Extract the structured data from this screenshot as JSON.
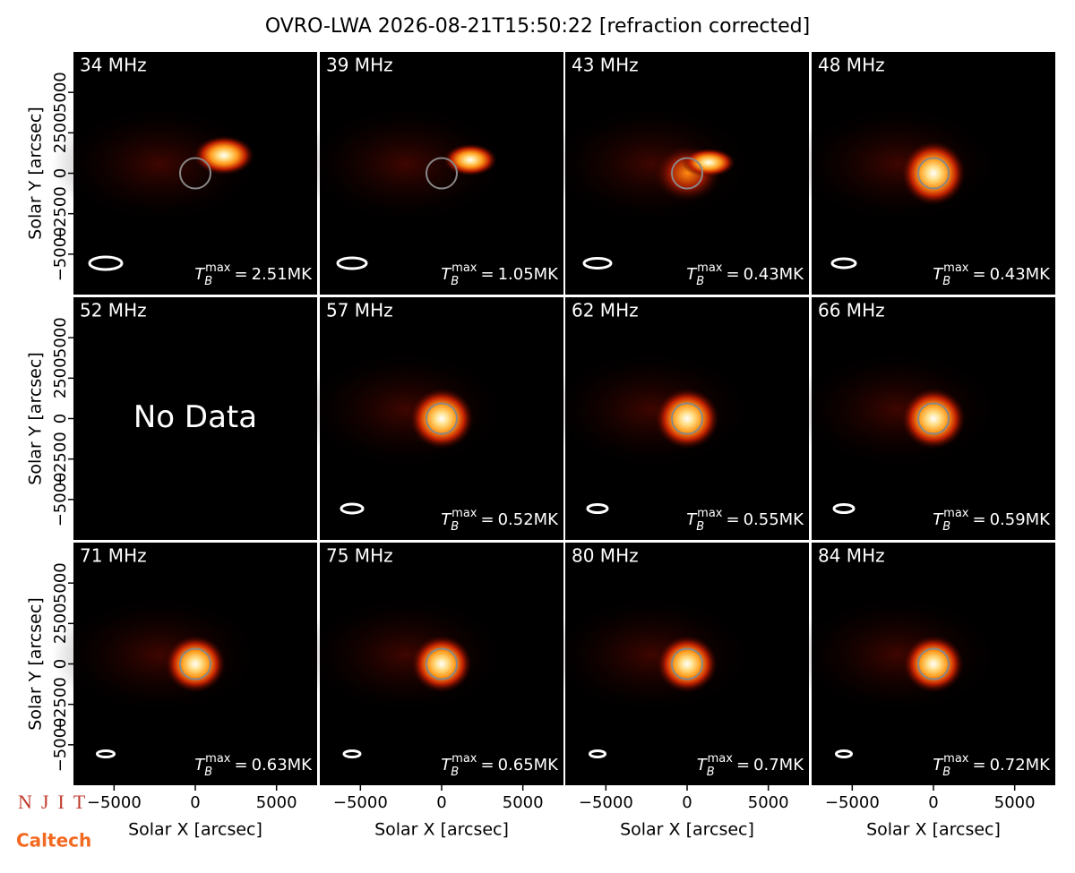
{
  "figure": {
    "title": "OVRO-LWA 2026-08-21T15:50:22 [refraction corrected]",
    "xlabel": "Solar X [arcsec]",
    "ylabel": "Solar Y [arcsec]",
    "xlim": [
      -7500,
      7500
    ],
    "ylim": [
      -7500,
      7500
    ],
    "xticks": [
      {
        "value": -5000,
        "label": "−5000"
      },
      0,
      5000
    ],
    "yticks": [
      {
        "value": -5000,
        "label": "−5000"
      },
      {
        "value": -2500,
        "label": "−2500"
      },
      0,
      2500,
      5000
    ],
    "tb_symbol": {
      "base": "T",
      "sub": "B",
      "sup": "max",
      "eq": "="
    },
    "no_data": "No Data",
    "logos": {
      "njit": "NJIT",
      "caltech": "Caltech"
    },
    "panels": [
      {
        "freq": "34 MHz",
        "tmax": "2.51MK"
      },
      {
        "freq": "39 MHz",
        "tmax": "1.05MK"
      },
      {
        "freq": "43 MHz",
        "tmax": "0.43MK"
      },
      {
        "freq": "48 MHz",
        "tmax": "0.43MK"
      },
      {
        "freq": "52 MHz"
      },
      {
        "freq": "57 MHz",
        "tmax": "0.52MK"
      },
      {
        "freq": "62 MHz",
        "tmax": "0.55MK"
      },
      {
        "freq": "66 MHz",
        "tmax": "0.59MK"
      },
      {
        "freq": "71 MHz",
        "tmax": "0.63MK"
      },
      {
        "freq": "75 MHz",
        "tmax": "0.65MK"
      },
      {
        "freq": "80 MHz",
        "tmax": "0.7MK"
      },
      {
        "freq": "84 MHz",
        "tmax": "0.72MK"
      }
    ]
  }
}
